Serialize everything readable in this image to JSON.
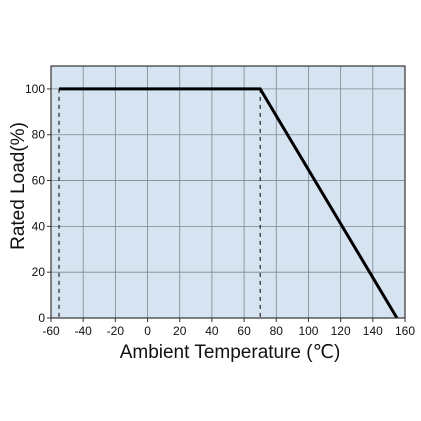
{
  "chart_data": {
    "type": "line",
    "title": "",
    "xlabel": "Ambient Temperature (℃)",
    "ylabel": "Rated Load(%)",
    "xlim": [
      -60,
      160
    ],
    "ylim": [
      0,
      110
    ],
    "x_ticks": [
      -60,
      -40,
      -20,
      0,
      20,
      40,
      60,
      80,
      100,
      120,
      140,
      160
    ],
    "y_ticks": [
      0,
      20,
      40,
      60,
      80,
      100
    ],
    "grid": true,
    "series": [
      {
        "x": [
          -55,
          70,
          155
        ],
        "y": [
          100,
          100,
          0
        ]
      }
    ],
    "reference_lines": [
      {
        "orientation": "vertical",
        "x": -55,
        "style": "dashed"
      },
      {
        "orientation": "vertical",
        "x": 70,
        "style": "dashed"
      }
    ],
    "colors": {
      "plot_background": "#d6e4f1",
      "grid": "#7f8790",
      "line": "#000000"
    }
  }
}
